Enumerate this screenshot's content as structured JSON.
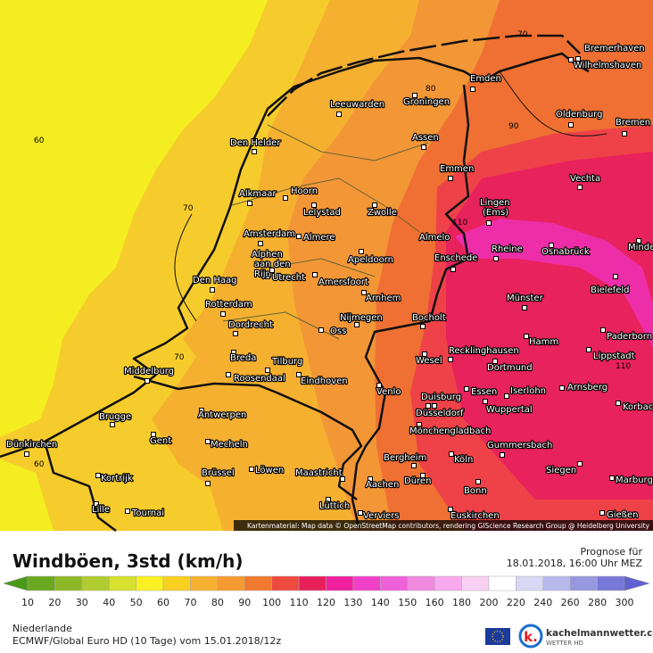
{
  "map": {
    "cities": [
      "Bremerhaven",
      "Wilhelmshaven",
      "Emden",
      "Oldenburg",
      "Bremen",
      "Leeuwarden",
      "Groningen",
      "Den Helder",
      "Assen",
      "Emmen",
      "Vechta",
      "Alkmaar",
      "Hoorn",
      [
        "Lingen",
        "(Ems)"
      ],
      "Lelystad",
      "Zwolle",
      "Amsterdam",
      "Almere",
      "Almelo",
      "Rheine",
      "Osnabrück",
      "Minden",
      [
        "Alphen",
        "aan den",
        "Rijn"
      ],
      "Enschede",
      "Apeldoorn",
      "Utrecht",
      "Amersfoort",
      "Den Haag",
      "Bielefeld",
      "Arnhem",
      "Münster",
      "Rotterdam",
      "Nijmegen",
      "Bocholt",
      "Dordrecht",
      "Oss",
      "Hamm",
      "Recklinghausen",
      "Paderborn",
      "Lippstadt",
      "Breda",
      "Tilburg",
      "Middelburg",
      "Wesel",
      "Dortmund",
      "Roosendaal",
      "Eindhoven",
      "Arnsberg",
      "Venlo",
      "Duisburg",
      "Essen",
      "Iserlohn",
      "Korbach",
      "Brugge",
      "Antwerpen",
      "Düsseldorf",
      "Wuppertal",
      "Mönchengladbach",
      "Gent",
      "Dünkirchen",
      "Mecheln",
      "Gummersbach",
      "Bergheim",
      "Köln",
      "Kortrijk",
      "Brüssel",
      "Löwen",
      "Maastricht",
      "Siegen",
      "Düren",
      "Aachen",
      "Marburg",
      "Bonn",
      "Lüttich",
      "Lille",
      "Tournai",
      "Verviers",
      "Euskirchen",
      "Gießen"
    ],
    "isoline_labels": [
      70,
      80,
      90,
      60,
      70,
      110,
      60,
      70,
      110
    ],
    "attribution": "Kartenmaterial: Map data © OpenStreetMap contributors, rendering GIScience Research Group @ Heidelberg University"
  },
  "legend": {
    "title": "Windböen, 3std (km/h)",
    "forecast_label": "Prognose für",
    "forecast_time": "18.01.2018, 16:00 Uhr MEZ",
    "scale_values": [
      10,
      20,
      30,
      40,
      50,
      60,
      70,
      80,
      90,
      100,
      110,
      120,
      130,
      140,
      150,
      160,
      180,
      200,
      220,
      240,
      260,
      280,
      300
    ],
    "scale_colors": [
      "#4a9a1a",
      "#6aa820",
      "#8cb828",
      "#b0cc30",
      "#d8e030",
      "#f8f020",
      "#f8d020",
      "#f5b030",
      "#f59a30",
      "#f07a30",
      "#ee4a40",
      "#e8205a",
      "#f020a0",
      "#f040c8",
      "#f060d8",
      "#f088e0",
      "#f8a8ec",
      "#f8d0f4",
      "#ffffff",
      "#d8d8f4",
      "#b8b8ec",
      "#9898e0",
      "#7878d8",
      "#6060d0"
    ]
  },
  "footer": {
    "region": "Niederlande",
    "model": "ECMWF/Global Euro HD (10 Tage) vom 15.01.2018/12z",
    "brand": "kachelmannwetter.com",
    "brand_sub": "WETTER HD",
    "brand_logo": "k."
  }
}
